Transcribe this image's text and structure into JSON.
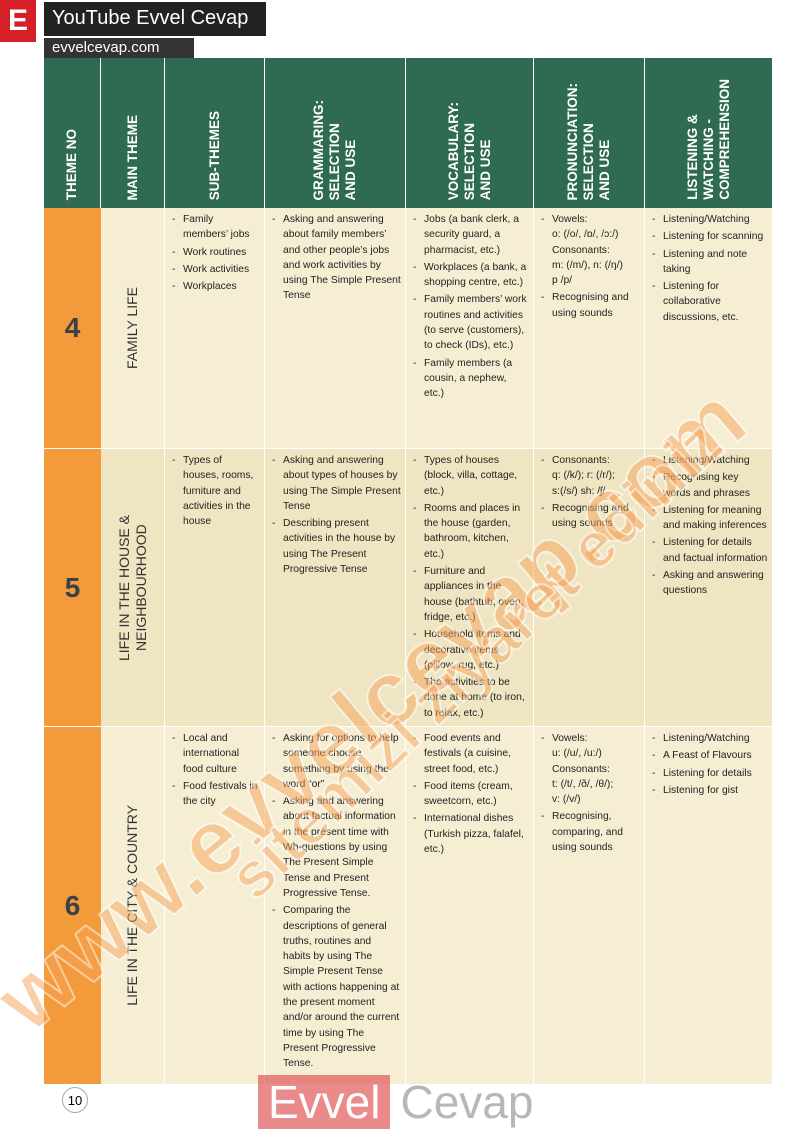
{
  "header": {
    "brand_letter": "E",
    "channel": "YouTube Evvel Cevap",
    "site": "evvelcevap.com"
  },
  "table": {
    "columns": [
      [
        "THEME NO"
      ],
      [
        "MAIN THEME"
      ],
      [
        "SUB-THEMES"
      ],
      [
        "GRAMMARING:",
        "SELECTION",
        "AND USE"
      ],
      [
        "VOCABULARY:",
        "SELECTION",
        "AND USE"
      ],
      [
        "PRONUNCIATION:",
        "SELECTION",
        "AND USE"
      ],
      [
        "LISTENING &",
        "WATCHING -",
        "COMPREHENSION"
      ]
    ],
    "rows": [
      {
        "theme_no": "4",
        "main_theme": [
          "FAMILY LIFE"
        ],
        "cells": [
          [
            "Family members’ jobs",
            "Work routines",
            "Work activities",
            "Workplaces"
          ],
          [
            "Asking and answering about family members’ and other people’s jobs and work activities by using The Simple Present Tense"
          ],
          [
            "Jobs (a bank clerk, a security guard, a pharmacist, etc.)",
            "Workplaces (a bank, a shopping centre, etc.)",
            "Family members’ work routines and activities (to serve (customers), to check (IDs), etc.)",
            "Family members (a cousin, a nephew, etc.)"
          ],
          [
            "Vowels:\no: (/o/, /ɒ/, /ɔ:/)\nConsonants:\nm: (/m/), n: (/ŋ/)\np /p/",
            "Recognising and using sounds"
          ],
          [
            "Listening/Watching",
            "Listening for scanning",
            "Listening and note taking",
            "Listening for collaborative discussions, etc."
          ]
        ]
      },
      {
        "theme_no": "5",
        "main_theme": [
          "LIFE IN THE HOUSE &",
          "NEIGHBOURHOOD"
        ],
        "cells": [
          [
            "Types of houses, rooms, furniture and activities in the house"
          ],
          [
            "Asking and answering about types of houses by using The Simple Present Tense",
            "Describing present activities in the house by using The Present Progressive Tense"
          ],
          [
            "Types of houses (block, villa, cottage, etc.)",
            "Rooms and places in the house (garden, bathroom, kitchen, etc.)",
            "Furniture and appliances in the house (bathtub, oven, fridge, etc.)",
            "Household items and decorative items (pillow, rug, etc.)",
            "The activities to be done at home (to iron, to relax, etc.)"
          ],
          [
            "Consonants:\nq: (/k/); r: (/r/);\ns:(/s/) sh: /ʃ/",
            "Recognising and using sounds"
          ],
          [
            "Listening/Watching",
            "Recognising key words and phrases",
            "Listening for meaning and making inferences",
            "Listening for details and factual information",
            "Asking and answering questions"
          ]
        ]
      },
      {
        "theme_no": "6",
        "main_theme": [
          "LIFE IN THE CITY & COUNTRY"
        ],
        "cells": [
          [
            "Local and international food culture",
            "Food festivals in the city"
          ],
          [
            "Asking for options to help someone choose something by using the word “or”",
            "Asking and answering about factual information in the present time with Wh-questions by using The Present Simple Tense and Present Progressive Tense.",
            "Comparing the descriptions of general truths, routines and habits by using The Simple Present Tense with actions happening at the present moment and/or around the current time by using The Present Progressive Tense."
          ],
          [
            "Food events and festivals (a cuisine, street food, etc.)",
            "Food items (cream, sweetcorn, etc.)",
            "International dishes (Turkish pizza, falafel, etc.)"
          ],
          [
            "Vowels:\nu: (/u/, /u:/)\nConsonants:\nt: (/t/, /ð/, /θ/);\nv: (/v/)",
            "Recognising, comparing, and using sounds"
          ],
          [
            "Listening/Watching",
            "A Feast of Flavours",
            "Listening for details",
            "Listening for gist"
          ]
        ]
      }
    ]
  },
  "watermarks": [
    "www.evvelcevap.com",
    "sitemizi ziyaret ediniz"
  ],
  "footer": {
    "page_number": "10",
    "logo_left": "Evvel",
    "logo_right": "Cevap"
  }
}
